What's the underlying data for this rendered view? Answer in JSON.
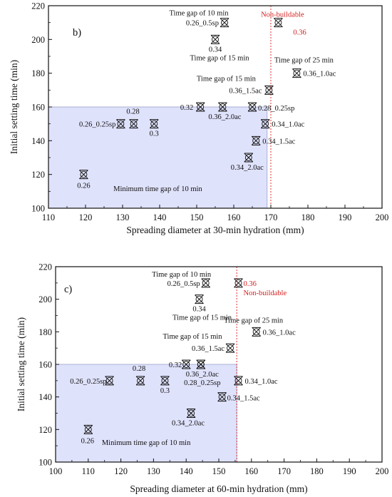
{
  "chart_data": [
    {
      "type": "scatter",
      "panel_label": "b)",
      "xlabel": "Spreading diameter at 30-min hydration (mm)",
      "ylabel": "Initial setting time (min)",
      "xlim": [
        110,
        200
      ],
      "ylim": [
        100,
        220
      ],
      "xticks": [
        110,
        120,
        130,
        140,
        150,
        160,
        170,
        180,
        190,
        200
      ],
      "yticks": [
        100,
        120,
        140,
        160,
        180,
        200,
        220
      ],
      "region": {
        "label": "Minimum time gap of 10 min",
        "x": [
          110,
          169
        ],
        "y": [
          100,
          160
        ],
        "color": "#dfe2fb"
      },
      "threshold": {
        "x": 170,
        "color": "#e03030"
      },
      "marker_color": "#111111",
      "points": [
        {
          "label": "0.26",
          "x": 119.5,
          "y": 120,
          "note": ""
        },
        {
          "label": "0.26_0.25sp",
          "x": 129.5,
          "y": 150,
          "note": ""
        },
        {
          "label": "0.28",
          "x": 133,
          "y": 150,
          "note": ""
        },
        {
          "label": "0.3",
          "x": 138.5,
          "y": 150,
          "note": ""
        },
        {
          "label": "0.32",
          "x": 151,
          "y": 160,
          "note": ""
        },
        {
          "label": "0.36_2.0ac",
          "x": 157,
          "y": 160,
          "note": ""
        },
        {
          "label": "0.28_0.25sp",
          "x": 165,
          "y": 160,
          "note": ""
        },
        {
          "label": "0.34_1.0ac",
          "x": 168.5,
          "y": 150,
          "note": ""
        },
        {
          "label": "0.34_1.5ac",
          "x": 166,
          "y": 140,
          "note": ""
        },
        {
          "label": "0.34_2.0ac",
          "x": 164,
          "y": 130,
          "note": ""
        },
        {
          "label": "0.36_1.5ac",
          "x": 169.5,
          "y": 170,
          "note": "Time gap of 15 min"
        },
        {
          "label": "0.36_1.0ac",
          "x": 177,
          "y": 180,
          "note": "Time gap of 25 min"
        },
        {
          "label": "0.34",
          "x": 155,
          "y": 200,
          "note": "Time gap of 15 min"
        },
        {
          "label": "0.26_0.5sp",
          "x": 157.5,
          "y": 210,
          "note": "Time gap of 10 min"
        },
        {
          "label": "0.36",
          "x": 172,
          "y": 210,
          "note": "Non-buildable"
        }
      ]
    },
    {
      "type": "scatter",
      "panel_label": "c)",
      "xlabel": "Spreading diameter at 60-min hydration (mm)",
      "ylabel": "Initial setting time (min)",
      "xlim": [
        100,
        200
      ],
      "ylim": [
        100,
        220
      ],
      "xticks": [
        100,
        110,
        120,
        130,
        140,
        150,
        160,
        170,
        180,
        190,
        200
      ],
      "yticks": [
        100,
        120,
        140,
        160,
        180,
        200,
        220
      ],
      "region": {
        "label": "Minimum time gap of 10 min",
        "x": [
          100,
          155.5
        ],
        "y": [
          100,
          160
        ],
        "color": "#dfe2fb"
      },
      "threshold": {
        "x": 155.5,
        "color": "#e03030"
      },
      "marker_color": "#111111",
      "points": [
        {
          "label": "0.26",
          "x": 110,
          "y": 120,
          "note": ""
        },
        {
          "label": "0.26_0.25sp",
          "x": 116.5,
          "y": 150,
          "note": ""
        },
        {
          "label": "0.28",
          "x": 126,
          "y": 150,
          "note": ""
        },
        {
          "label": "0.3",
          "x": 133.5,
          "y": 150,
          "note": ""
        },
        {
          "label": "0.32",
          "x": 140,
          "y": 160,
          "note": ""
        },
        {
          "label": "0.36_2.0ac",
          "x": 144.5,
          "y": 160,
          "note": ""
        },
        {
          "label": "0.28_0.25sp",
          "x": 144.5,
          "y": 160,
          "note": ""
        },
        {
          "label": "0.34_2.0ac",
          "x": 141.5,
          "y": 130,
          "note": ""
        },
        {
          "label": "0.34_1.0ac",
          "x": 156,
          "y": 150,
          "note": ""
        },
        {
          "label": "0.34_1.5ac",
          "x": 151,
          "y": 140,
          "note": ""
        },
        {
          "label": "0.36_1.5ac",
          "x": 153.5,
          "y": 170,
          "note": "Time gap of 15 min"
        },
        {
          "label": "0.36_1.0ac",
          "x": 161.5,
          "y": 180,
          "note": "Time gap of 25 min"
        },
        {
          "label": "0.34",
          "x": 144,
          "y": 200,
          "note": "Time gap of 15 min"
        },
        {
          "label": "0.26_0.5sp",
          "x": 146,
          "y": 210,
          "note": "Time gap of 10 min"
        },
        {
          "label": "0.36",
          "x": 156,
          "y": 210,
          "note": "Non-buildable"
        }
      ]
    }
  ]
}
